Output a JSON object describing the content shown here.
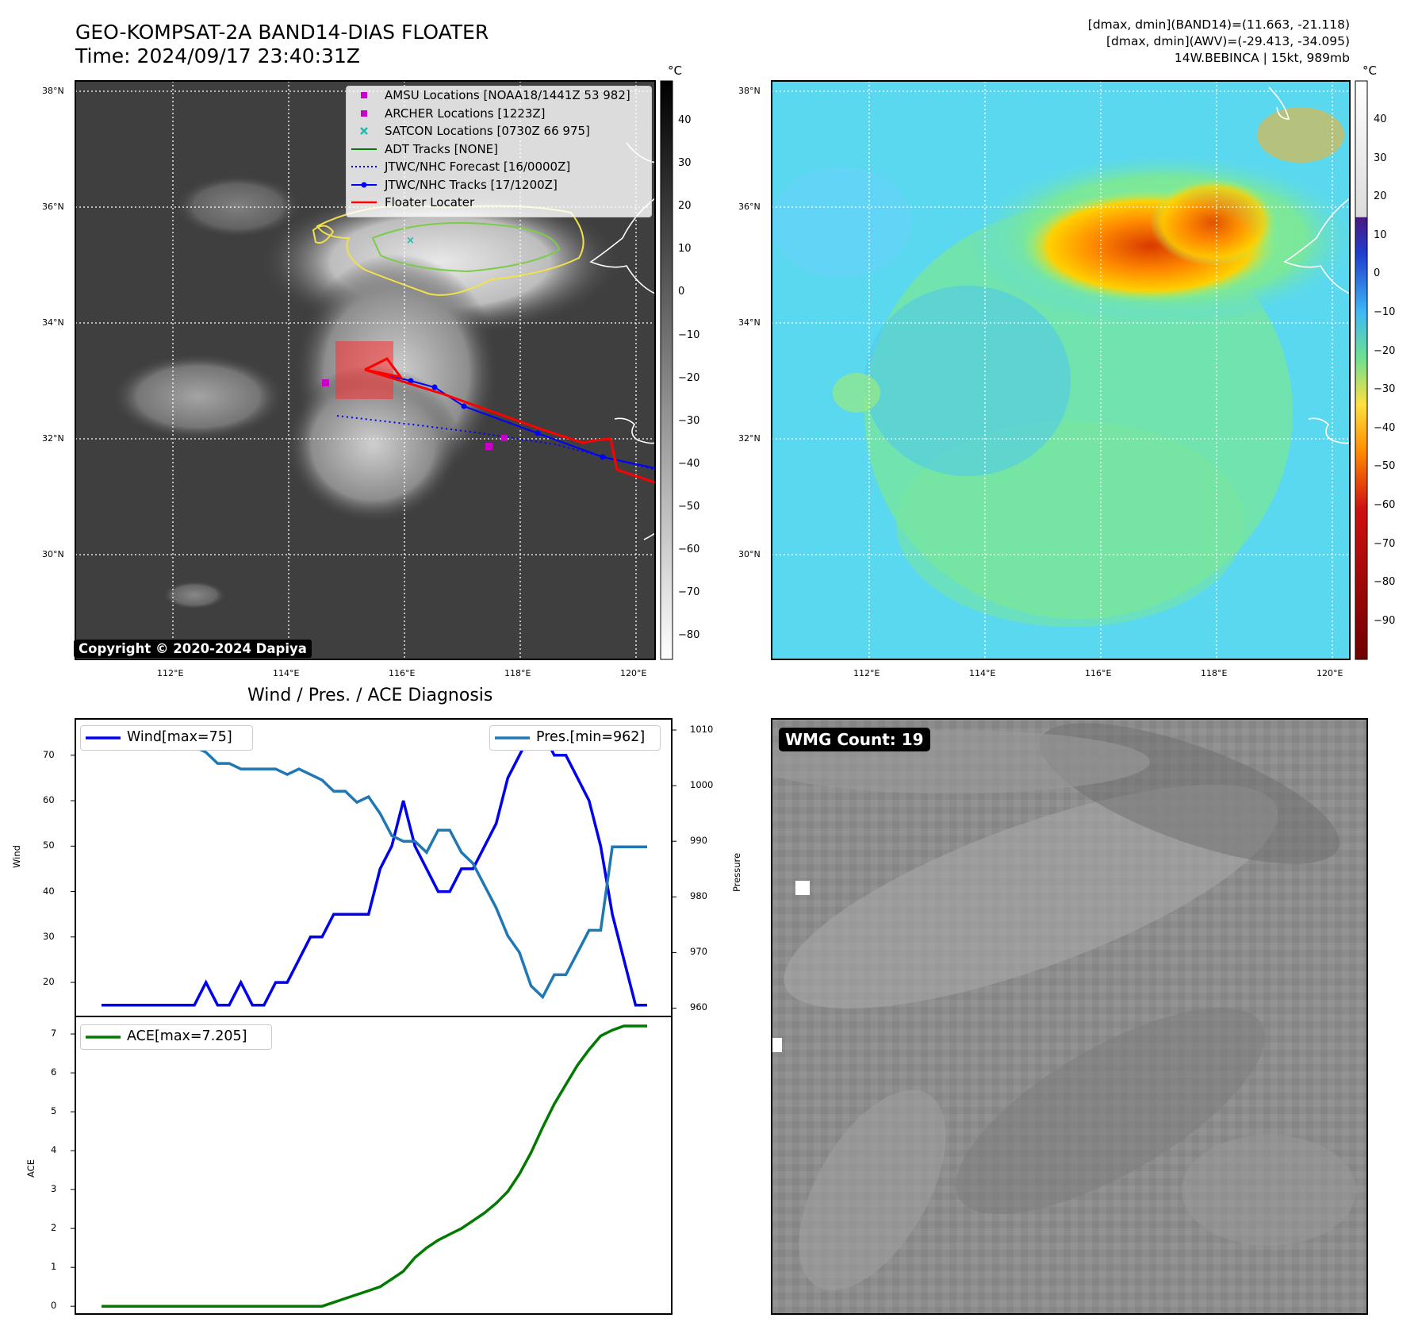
{
  "header": {
    "title": "GEO-KOMPSAT-2A BAND14-DIAS FLOATER",
    "time": "Time: 2024/09/17 23:40:31Z",
    "info_line1": "[dmax, dmin](BAND14)=(11.663, -21.118)",
    "info_line2": "[dmax, dmin](AWV)=(-29.413, -34.095)",
    "info_line3": "14W.BEBINCA | 15kt, 989mb"
  },
  "map_panel": {
    "lat_labels": [
      "38°N",
      "36°N",
      "34°N",
      "32°N",
      "30°N"
    ],
    "lon_labels": [
      "112°E",
      "114°E",
      "116°E",
      "118°E",
      "120°E"
    ],
    "copyright": "Copyright © 2020-2024 Dapiya",
    "legend": [
      {
        "label": "AMSU Locations [NOAA18/1441Z 53 982]",
        "color": "#c800c8",
        "marker": "square"
      },
      {
        "label": "ARCHER Locations [1223Z]",
        "color": "#c800c8",
        "marker": "square"
      },
      {
        "label": "SATCON Locations [0730Z 66 975]",
        "color": "#1fb8b0",
        "marker": "x"
      },
      {
        "label": "ADT Tracks [NONE]",
        "color": "#007a00",
        "marker": "line"
      },
      {
        "label": "JTWC/NHC Forecast [16/0000Z]",
        "color": "#0000ff",
        "marker": "dotted"
      },
      {
        "label": "JTWC/NHC Tracks [17/1200Z]",
        "color": "#0000ff",
        "marker": "line-dot"
      },
      {
        "label": "Floater Locater",
        "color": "#ff0000",
        "marker": "line"
      }
    ],
    "colorbar_unit": "°C",
    "colorbar_ticks": [
      "40",
      "30",
      "20",
      "10",
      "0",
      "−10",
      "−20",
      "−30",
      "−40",
      "−50",
      "−60",
      "−70",
      "−80"
    ]
  },
  "awv_panel": {
    "lat_labels": [
      "38°N",
      "36°N",
      "34°N",
      "32°N",
      "30°N"
    ],
    "lon_labels": [
      "112°E",
      "114°E",
      "116°E",
      "118°E",
      "120°E"
    ],
    "colorbar_unit": "°C",
    "colorbar_ticks": [
      "40",
      "30",
      "20",
      "10",
      "0",
      "−10",
      "−20",
      "−30",
      "−40",
      "−50",
      "−60",
      "−70",
      "−80",
      "−90"
    ]
  },
  "wmg_panel": {
    "label": "WMG Count: 19"
  },
  "chart_data": [
    {
      "type": "line",
      "title": "Wind / Pres. / ACE Diagnosis",
      "xlabel": "",
      "ylabel": "Wind",
      "ylabel_right": "Pressure",
      "ylim": [
        12.5,
        78
      ],
      "ylim_right": [
        958.5,
        1012
      ],
      "yticks": [
        20,
        30,
        40,
        50,
        60,
        70
      ],
      "yticks_right": [
        960,
        970,
        980,
        990,
        1000,
        1010
      ],
      "series": [
        {
          "name": "Wind[max=75]",
          "axis": "left",
          "color": "#0000ee",
          "values": [
            15,
            15,
            15,
            15,
            15,
            15,
            15,
            15,
            15,
            20,
            15,
            15,
            20,
            15,
            15,
            20,
            20,
            25,
            30,
            30,
            35,
            35,
            35,
            35,
            45,
            50,
            60,
            50,
            45,
            40,
            40,
            45,
            45,
            50,
            55,
            65,
            70,
            75,
            75,
            70,
            70,
            65,
            60,
            50,
            35,
            25,
            15,
            15
          ]
        },
        {
          "name": "Pres.[min=962]",
          "axis": "right",
          "color": "#1f77b4",
          "values": [
            1010,
            1008,
            1008,
            1008,
            1008,
            1009,
            1009,
            1007,
            1007,
            1006,
            1004,
            1004,
            1003,
            1003,
            1003,
            1003,
            1002,
            1003,
            1002,
            1001,
            999,
            999,
            997,
            998,
            995,
            991,
            990,
            990,
            988,
            992,
            992,
            988,
            986,
            982,
            978,
            973,
            970,
            964,
            962,
            966,
            966,
            970,
            974,
            974,
            989,
            989,
            989,
            989
          ]
        }
      ]
    },
    {
      "type": "line",
      "title": "",
      "xlabel": "",
      "ylabel": "ACE",
      "ylim": [
        -0.2,
        7.45
      ],
      "yticks": [
        0,
        1,
        2,
        3,
        4,
        5,
        6,
        7
      ],
      "series": [
        {
          "name": "ACE[max=7.205]",
          "color": "#007a00",
          "values": [
            0,
            0,
            0,
            0,
            0,
            0,
            0,
            0,
            0,
            0,
            0,
            0,
            0,
            0,
            0,
            0,
            0,
            0,
            0,
            0,
            0.1,
            0.2,
            0.3,
            0.4,
            0.5,
            0.7,
            0.9,
            1.25,
            1.5,
            1.7,
            1.85,
            2.0,
            2.2,
            2.4,
            2.65,
            2.95,
            3.4,
            3.95,
            4.6,
            5.2,
            5.7,
            6.2,
            6.6,
            6.95,
            7.1,
            7.205,
            7.205,
            7.205
          ]
        }
      ]
    }
  ],
  "colors": {
    "ir_background": "#3f3f3f",
    "awv_background": "#5ad8f0",
    "wmg_background": "#8a8a8a"
  }
}
